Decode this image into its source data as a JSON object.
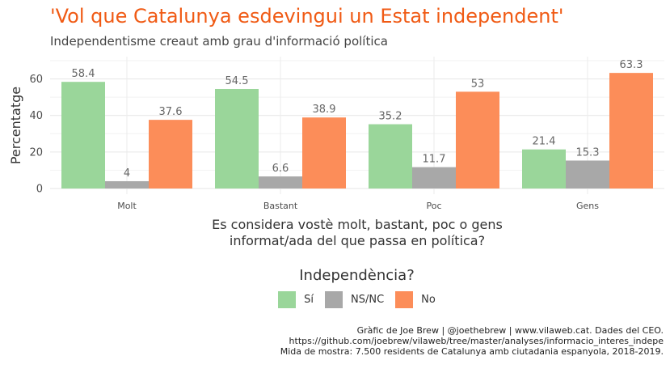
{
  "chart_data": {
    "type": "bar",
    "title": "'Vol que Catalunya esdevingui un Estat independent'",
    "subtitle": "Independentisme creaut amb grau d'informació política",
    "xlabel_line1": "Es considera vostè molt, bastant, poc o gens",
    "xlabel_line2": "informat/ada del que passa en política?",
    "ylabel": "Percentatge",
    "categories": [
      "Molt",
      "Bastant",
      "Poc",
      "Gens"
    ],
    "series": [
      {
        "name": "Sí",
        "color": "#9ad69a",
        "values": [
          58.4,
          54.5,
          35.2,
          21.4
        ],
        "labels": [
          "58.4",
          "54.5",
          "35.2",
          "21.4"
        ]
      },
      {
        "name": "NS/NC",
        "color": "#a8a8a8",
        "values": [
          4,
          6.6,
          11.7,
          15.3
        ],
        "labels": [
          "4",
          "6.6",
          "11.7",
          "15.3"
        ]
      },
      {
        "name": "No",
        "color": "#fc8d59",
        "values": [
          37.6,
          38.9,
          53,
          63.3
        ],
        "labels": [
          "37.6",
          "38.9",
          "53",
          "63.3"
        ]
      }
    ],
    "yticks": [
      0,
      20,
      40,
      60
    ],
    "ylim": [
      0,
      70
    ],
    "legend_title": "Independència?",
    "legend_position": "bottom",
    "grid": true
  },
  "caption": {
    "line1": "Gràfic de Joe Brew | @joethebrew | www.vilaweb.cat. Dades del CEO.",
    "line2": "https://github.com/joebrew/vilaweb/tree/master/analyses/informacio_interes_indepe",
    "line3": "Mida de mostra: 7.500 residents de Catalunya amb ciutadania espanyola, 2018-2019."
  }
}
